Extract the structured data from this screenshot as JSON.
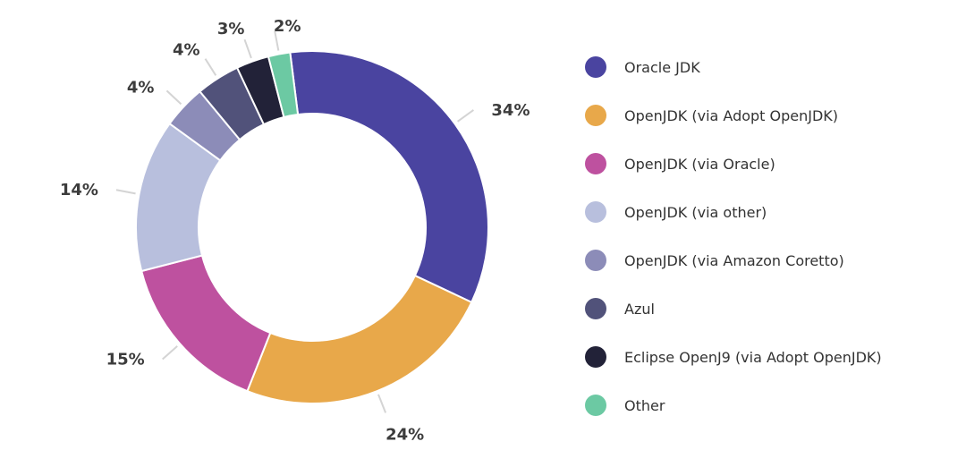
{
  "chart_data": {
    "type": "pie",
    "variant": "donut",
    "title": "",
    "legend_position": "right",
    "slices": [
      {
        "label": "Oracle JDK",
        "value": 34,
        "display": "34%",
        "color": "#4a44a0"
      },
      {
        "label": "OpenJDK (via Adopt OpenJDK)",
        "value": 24,
        "display": "24%",
        "color": "#e8a84a"
      },
      {
        "label": "OpenJDK (via Oracle)",
        "value": 15,
        "display": "15%",
        "color": "#be519f"
      },
      {
        "label": "OpenJDK (via other)",
        "value": 14,
        "display": "14%",
        "color": "#b8bfdd"
      },
      {
        "label": "OpenJDK (via Amazon Coretto)",
        "value": 4,
        "display": "4%",
        "color": "#8c8cb8"
      },
      {
        "label": "Azul",
        "value": 4,
        "display": "4%",
        "color": "#51527a"
      },
      {
        "label": "Eclipse OpenJ9 (via Adopt OpenJDK)",
        "value": 3,
        "display": "3%",
        "color": "#222238"
      },
      {
        "label": "Other",
        "value": 2,
        "display": "2%",
        "color": "#6cc9a3"
      }
    ]
  }
}
